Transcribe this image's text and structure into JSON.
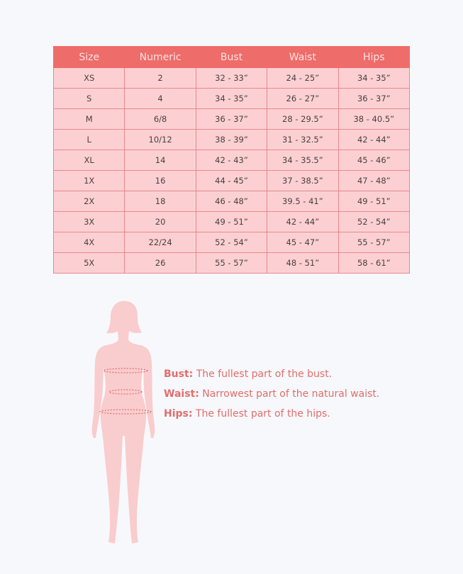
{
  "table": {
    "headers": [
      "Size",
      "Numeric",
      "Bust",
      "Waist",
      "Hips"
    ],
    "rows": [
      [
        "XS",
        "2",
        "32  -  33”",
        "24 - 25”",
        "34 - 35”"
      ],
      [
        "S",
        "4",
        "34 - 35”",
        "26 - 27”",
        "36 - 37”"
      ],
      [
        "M",
        "6/8",
        "36 - 37”",
        "28 - 29.5”",
        "38 - 40.5”"
      ],
      [
        "L",
        "10/12",
        "38 - 39”",
        "31 - 32.5”",
        "42 - 44”"
      ],
      [
        "XL",
        "14",
        "42 - 43”",
        "34 - 35.5”",
        "45 - 46”"
      ],
      [
        "1X",
        "16",
        "44 - 45”",
        "37 - 38.5”",
        "47 - 48”"
      ],
      [
        "2X",
        "18",
        "46 - 48”",
        "39.5 - 41”",
        "49 - 51”"
      ],
      [
        "3X",
        "20",
        "49 - 51”",
        "42 - 44”",
        "52 - 54”"
      ],
      [
        "4X",
        "22/24",
        "52 - 54”",
        "45 - 47”",
        "55 - 57”"
      ],
      [
        "5X",
        "26",
        "55 - 57”",
        "48 - 51”",
        "58 - 61”"
      ]
    ]
  },
  "legend": [
    {
      "term": "Bust:",
      "desc": " The fullest part of the bust."
    },
    {
      "term": "Waist:",
      "desc": " Narrowest part of the natural waist."
    },
    {
      "term": "Hips:",
      "desc": " The fullest part of the hips."
    }
  ],
  "colors": {
    "header": "#ee6c69",
    "cell": "#fcd0d3",
    "text_accent": "#e26d6d",
    "silhouette": "#f9cccd"
  }
}
